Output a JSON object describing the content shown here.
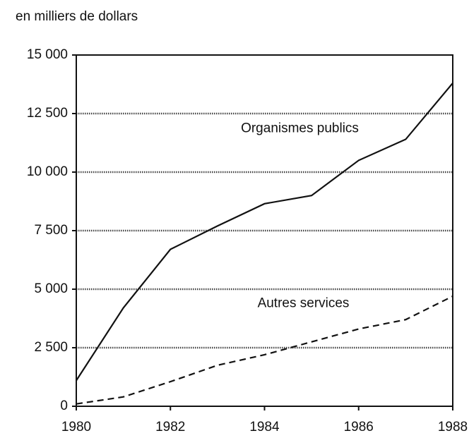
{
  "chart_data": {
    "type": "line",
    "y_label": "en milliers de dollars",
    "x": [
      1980,
      1981,
      1982,
      1983,
      1984,
      1985,
      1986,
      1987,
      1988
    ],
    "series": [
      {
        "name": "Organismes publics",
        "color": "#111111",
        "style": "solid",
        "values": [
          1100,
          4200,
          6700,
          7700,
          8650,
          9000,
          10500,
          11400,
          13800
        ]
      },
      {
        "name": "Autres services",
        "color": "#111111",
        "style": "dashed",
        "values": [
          100,
          400,
          1050,
          1750,
          2200,
          2750,
          3300,
          3700,
          4700
        ]
      }
    ],
    "xlim": [
      1980,
      1988
    ],
    "xticks": [
      1980,
      1982,
      1984,
      1986,
      1988
    ],
    "ylim": [
      0,
      15000
    ],
    "yticks": [
      0,
      {
        "value": 2500,
        "label": "2 500"
      },
      {
        "value": 5000,
        "label": "5 000"
      },
      {
        "value": 7500,
        "label": "7 500"
      },
      {
        "value": 10000,
        "label": "10 000"
      },
      {
        "value": 12500,
        "label": "12 500"
      },
      {
        "value": 15000,
        "label": "15 000"
      }
    ],
    "grid": true
  }
}
